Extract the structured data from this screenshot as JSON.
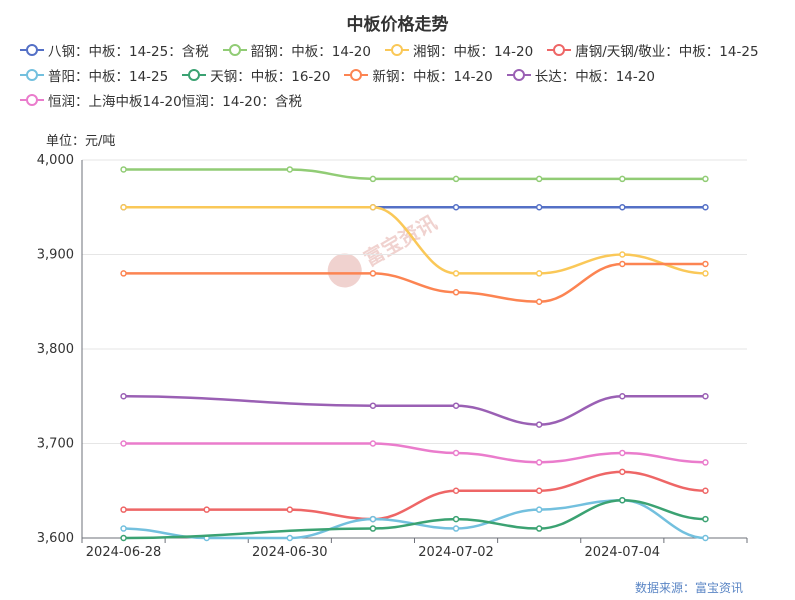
{
  "chart_data": {
    "type": "line",
    "title": "中板价格走势",
    "unit_label": "单位：元/吨",
    "source": "数据来源：富宝资讯",
    "watermark": "富宝资讯",
    "x": [
      "2024-06-28",
      "2024-06-29",
      "2024-06-30",
      "2024-07-01",
      "2024-07-02",
      "2024-07-03",
      "2024-07-04",
      "2024-07-05"
    ],
    "x_tick_labels": [
      "2024-06-28",
      "2024-06-30",
      "2024-07-02",
      "2024-07-04"
    ],
    "ylim": [
      3600,
      4000
    ],
    "y_ticks": [
      "3,600",
      "3,700",
      "3,800",
      "3,900",
      "4,000"
    ],
    "legend_position": "top",
    "grid": "horizontal",
    "series": [
      {
        "name": "八钢：中板：14-25：含税",
        "color": "#5470c6",
        "values": [
          3950,
          null,
          null,
          3950,
          3950,
          3950,
          3950,
          3950
        ]
      },
      {
        "name": "韶钢：中板：14-20",
        "color": "#91cc75",
        "values": [
          3990,
          null,
          3990,
          3980,
          3980,
          3980,
          3980,
          3980
        ]
      },
      {
        "name": "湘钢：中板：14-20",
        "color": "#fac858",
        "values": [
          3950,
          null,
          null,
          3950,
          3880,
          3880,
          3900,
          3880
        ]
      },
      {
        "name": "唐钢/天钢/敬业：中板：14-25",
        "color": "#ee6666",
        "values": [
          3630,
          3630,
          3630,
          3620,
          3650,
          3650,
          3670,
          3650
        ]
      },
      {
        "name": "普阳：中板：14-25",
        "color": "#73c0de",
        "values": [
          3610,
          3600,
          3600,
          3620,
          3610,
          3630,
          3640,
          3600
        ]
      },
      {
        "name": "天钢：中板：16-20",
        "color": "#3ba272",
        "values": [
          3600,
          null,
          null,
          3610,
          3620,
          3610,
          3640,
          3620
        ]
      },
      {
        "name": "新钢：中板：14-20",
        "color": "#fc8452",
        "values": [
          3880,
          null,
          null,
          3880,
          3860,
          3850,
          3890,
          3890
        ]
      },
      {
        "name": "长达：中板：14-20",
        "color": "#9a60b4",
        "values": [
          3750,
          null,
          null,
          3740,
          3740,
          3720,
          3750,
          3750
        ]
      },
      {
        "name": "恒润：上海中板14-20恒润：14-20：含税",
        "color": "#ea7ccc",
        "values": [
          3700,
          null,
          null,
          3700,
          3690,
          3680,
          3690,
          3680
        ]
      }
    ]
  }
}
